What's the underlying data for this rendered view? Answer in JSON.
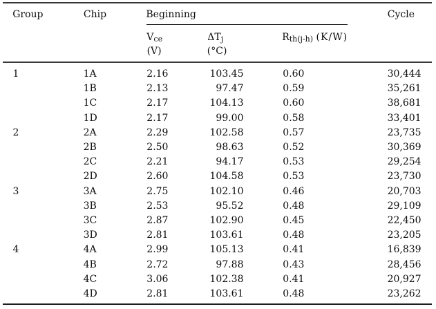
{
  "table": {
    "header": {
      "group": "Group",
      "chip": "Chip",
      "beginning": "Beginning",
      "cycle": "Cycle",
      "vce": {
        "base": "V",
        "sub": "ce",
        "unit": "(V)"
      },
      "dtj": {
        "base": "ΔT",
        "sub": "j",
        "unit": "(°C)"
      },
      "rth": {
        "base": "R",
        "sub": "th(j-h)",
        "after": "(K/W)"
      }
    },
    "rows": [
      {
        "group": "1",
        "chip": "1A",
        "vce": "2.16",
        "dtj": "103.45",
        "rth": "0.60",
        "cycle": "30,444"
      },
      {
        "group": "",
        "chip": "1B",
        "vce": "2.13",
        "dtj": "97.47",
        "rth": "0.59",
        "cycle": "35,261"
      },
      {
        "group": "",
        "chip": "1C",
        "vce": "2.17",
        "dtj": "104.13",
        "rth": "0.60",
        "cycle": "38,681"
      },
      {
        "group": "",
        "chip": "1D",
        "vce": "2.17",
        "dtj": "99.00",
        "rth": "0.58",
        "cycle": "33,401"
      },
      {
        "group": "2",
        "chip": "2A",
        "vce": "2.29",
        "dtj": "102.58",
        "rth": "0.57",
        "cycle": "23,735"
      },
      {
        "group": "",
        "chip": "2B",
        "vce": "2.50",
        "dtj": "98.63",
        "rth": "0.52",
        "cycle": "30,369"
      },
      {
        "group": "",
        "chip": "2C",
        "vce": "2.21",
        "dtj": "94.17",
        "rth": "0.53",
        "cycle": "29,254"
      },
      {
        "group": "",
        "chip": "2D",
        "vce": "2.60",
        "dtj": "104.58",
        "rth": "0.53",
        "cycle": "23,730"
      },
      {
        "group": "3",
        "chip": "3A",
        "vce": "2.75",
        "dtj": "102.10",
        "rth": "0.46",
        "cycle": "20,703"
      },
      {
        "group": "",
        "chip": "3B",
        "vce": "2.53",
        "dtj": "95.52",
        "rth": "0.48",
        "cycle": "29,109"
      },
      {
        "group": "",
        "chip": "3C",
        "vce": "2.87",
        "dtj": "102.90",
        "rth": "0.45",
        "cycle": "22,450"
      },
      {
        "group": "",
        "chip": "3D",
        "vce": "2.81",
        "dtj": "103.61",
        "rth": "0.48",
        "cycle": "23,205"
      },
      {
        "group": "4",
        "chip": "4A",
        "vce": "2.99",
        "dtj": "105.13",
        "rth": "0.41",
        "cycle": "16,839"
      },
      {
        "group": "",
        "chip": "4B",
        "vce": "2.72",
        "dtj": "97.88",
        "rth": "0.43",
        "cycle": "28,456"
      },
      {
        "group": "",
        "chip": "4C",
        "vce": "3.06",
        "dtj": "102.38",
        "rth": "0.41",
        "cycle": "20,927"
      },
      {
        "group": "",
        "chip": "4D",
        "vce": "2.81",
        "dtj": "103.61",
        "rth": "0.48",
        "cycle": "23,262"
      }
    ]
  },
  "colors": {
    "background": "#ffffff",
    "text": "#0c0c0c",
    "rule": "#383838"
  }
}
